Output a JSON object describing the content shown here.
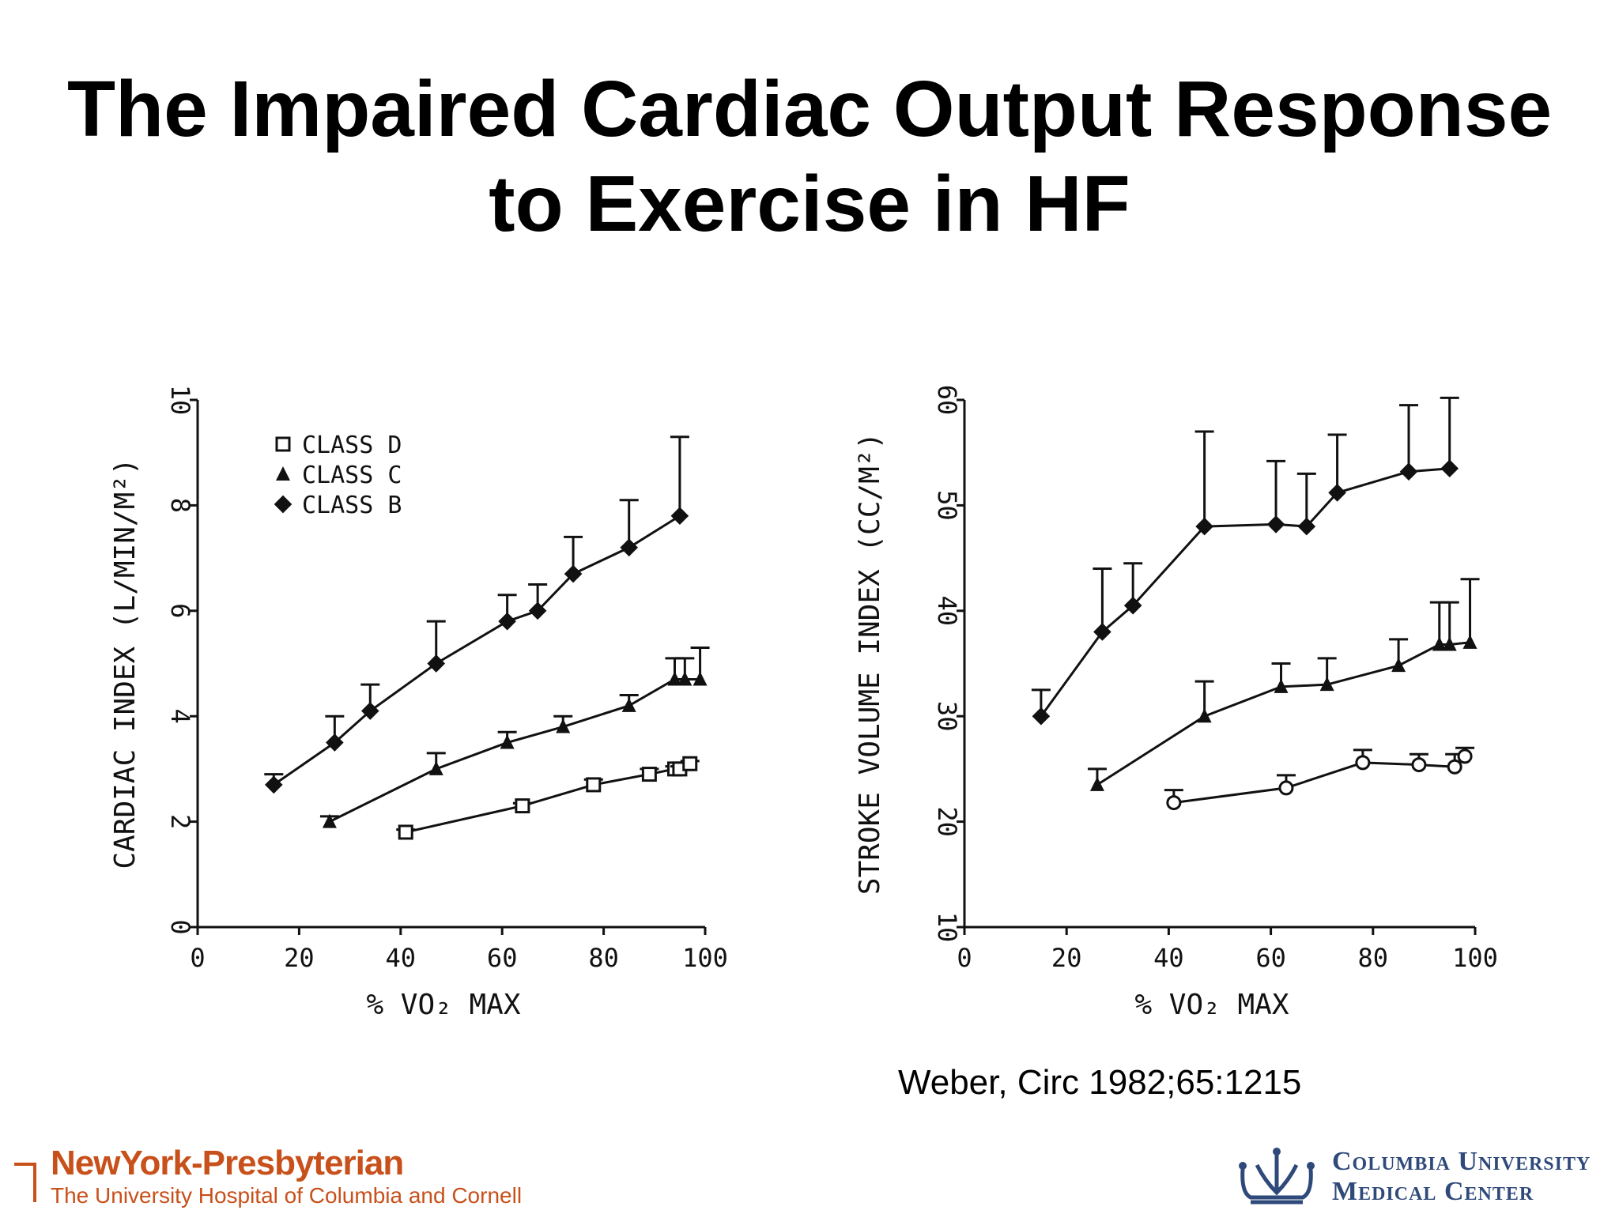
{
  "slide": {
    "title_line1": "The Impaired Cardiac Output Response",
    "title_line2": "to Exercise in HF",
    "citation": "Weber, Circ 1982;65:1215"
  },
  "logos": {
    "nyp_name": "NewYork-Presbyterian",
    "nyp_sub": "The University Hospital of Columbia and Cornell",
    "cumc_line1": "Columbia University",
    "cumc_line2": "Medical Center"
  },
  "colors": {
    "ink": "#111111",
    "nyp": "#c8501a",
    "cumc": "#2f4a7a"
  },
  "chart_data": [
    {
      "type": "line",
      "xlabel": "% VO₂  MAX",
      "ylabel": "CARDIAC INDEX (L/MIN/M²)",
      "xlim": [
        0,
        100
      ],
      "ylim": [
        0,
        10
      ],
      "xticks": [
        0,
        20,
        40,
        60,
        80,
        100
      ],
      "yticks": [
        0,
        2,
        4,
        6,
        8,
        10
      ],
      "legend": {
        "placement": "top-left",
        "entries": [
          {
            "marker": "square",
            "label": "CLASS D"
          },
          {
            "marker": "triangle",
            "label": "CLASS C"
          },
          {
            "marker": "star",
            "label": "CLASS B"
          }
        ]
      },
      "series": [
        {
          "marker": "star",
          "x": [
            15,
            27,
            34,
            47,
            61,
            67,
            74,
            85,
            95
          ],
          "y": [
            2.7,
            3.5,
            4.1,
            5.0,
            5.8,
            6.0,
            6.7,
            7.2,
            7.8
          ],
          "err": [
            0.2,
            0.5,
            0.5,
            0.8,
            0.5,
            0.5,
            0.7,
            0.9,
            1.5
          ]
        },
        {
          "marker": "triangle",
          "x": [
            26,
            47,
            61,
            72,
            85,
            94,
            96,
            99
          ],
          "y": [
            2.0,
            3.0,
            3.5,
            3.8,
            4.2,
            4.7,
            4.7,
            4.7
          ],
          "err": [
            0.1,
            0.3,
            0.2,
            0.2,
            0.2,
            0.4,
            0.4,
            0.6
          ]
        },
        {
          "marker": "square",
          "x": [
            41,
            64,
            78,
            89,
            94,
            95,
            97
          ],
          "y": [
            1.8,
            2.3,
            2.7,
            2.9,
            3.0,
            3.0,
            3.1
          ],
          "err": [
            0.05,
            0.05,
            0.1,
            0.1,
            0.05,
            0.05,
            0.05
          ]
        }
      ]
    },
    {
      "type": "line",
      "xlabel": "% VO₂  MAX",
      "ylabel": "STROKE VOLUME INDEX (CC/M²)",
      "xlim": [
        0,
        100
      ],
      "ylim": [
        10,
        60
      ],
      "xticks": [
        0,
        20,
        40,
        60,
        80,
        100
      ],
      "yticks": [
        10,
        20,
        30,
        40,
        50,
        60
      ],
      "series": [
        {
          "marker": "star",
          "x": [
            15,
            27,
            33,
            47,
            61,
            67,
            73,
            87,
            95
          ],
          "y": [
            30,
            38,
            40.5,
            48,
            48.2,
            48,
            51.2,
            53.2,
            53.5
          ],
          "err": [
            2.5,
            6,
            4,
            9,
            6,
            5,
            5.5,
            6.3,
            6.7
          ]
        },
        {
          "marker": "triangle",
          "x": [
            26,
            47,
            62,
            71,
            85,
            93,
            95,
            99
          ],
          "y": [
            23.5,
            30,
            32.8,
            33,
            34.8,
            36.8,
            36.8,
            37
          ],
          "err": [
            1.5,
            3.3,
            2.2,
            2.5,
            2.5,
            4,
            4,
            6
          ]
        },
        {
          "marker": "circle",
          "x": [
            41,
            63,
            78,
            89,
            96,
            98
          ],
          "y": [
            21.8,
            23.2,
            25.6,
            25.4,
            25.2,
            26.2
          ],
          "err": [
            1.2,
            1.2,
            1.2,
            1.0,
            1.2,
            0.8
          ]
        }
      ]
    }
  ]
}
